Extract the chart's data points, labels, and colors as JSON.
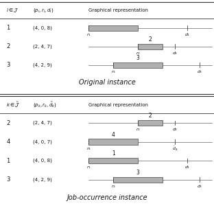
{
  "fig_width": 3.12,
  "fig_height": 3.03,
  "dpi": 100,
  "bg_color": "#ffffff",
  "bar_color": "#b0b0b0",
  "bar_edge_color": "#444444",
  "line_color": "#444444",
  "timeline_color": "#666666",
  "text_color": "#111111",
  "header_line_color": "#333333",
  "sep_line_color": "#333333",
  "top_section": {
    "title": "Original instance",
    "header_col1": "$i \\in \\mathcal{J}$",
    "header_col2": "$(p_i, r_i, d_i)$",
    "header_col3": "Graphical representation",
    "jobs": [
      {
        "id": "1",
        "label": "(4, 0, 8)",
        "r": 0,
        "p": 4,
        "d": 8,
        "num": "",
        "r_label": "$r_1$",
        "d_label": "$d_1$"
      },
      {
        "id": "2",
        "label": "(2, 4, 7)",
        "r": 4,
        "p": 2,
        "d": 7,
        "num": "2",
        "r_label": "$r_2$",
        "d_label": "$d_2$"
      },
      {
        "id": "3",
        "label": "(4, 2, 9)",
        "r": 2,
        "p": 4,
        "d": 9,
        "num": "3",
        "r_label": "$r_3$",
        "d_label": "$d_3$"
      }
    ],
    "tmax": 10
  },
  "bottom_section": {
    "title": "Job-occurrence instance",
    "header_col1": "$k \\in \\tilde{\\mathcal{J}}$",
    "header_col2": "$(p_k, r_k, \\tilde{d}_k)$",
    "header_col3": "Graphical representation",
    "jobs": [
      {
        "id": "2",
        "label": "(2, 4, 7)",
        "r": 4,
        "p": 2,
        "d": 7,
        "num": "2",
        "r_label": "$r_2$",
        "d_label": "$d_2$"
      },
      {
        "id": "4",
        "label": "(4, 0, 7)",
        "r": 0,
        "p": 4,
        "d": 7,
        "num": "4",
        "r_label": "$r_4$",
        "d_label": "$\\tilde{d}_4$"
      },
      {
        "id": "1",
        "label": "(4, 0, 8)",
        "r": 0,
        "p": 4,
        "d": 8,
        "num": "1",
        "r_label": "$r_1$",
        "d_label": "$d_1$"
      },
      {
        "id": "3",
        "label": "(4, 2, 9)",
        "r": 2,
        "p": 4,
        "d": 9,
        "num": "3",
        "r_label": "$r_3$",
        "d_label": "$d_3$"
      }
    ],
    "tmax": 10
  }
}
